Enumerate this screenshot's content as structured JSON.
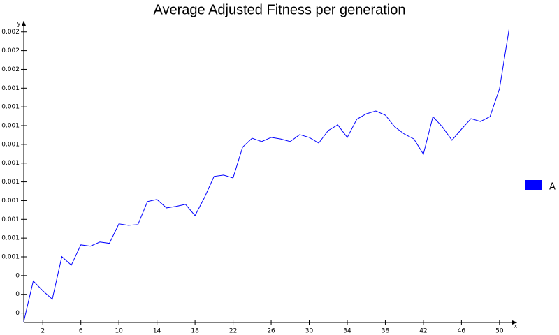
{
  "chart_data": {
    "type": "line",
    "title": "Average Adjusted Fitness per generation",
    "x_label": "x",
    "y_label": "y",
    "x": [
      0,
      1,
      2,
      3,
      4,
      5,
      6,
      7,
      8,
      9,
      10,
      11,
      12,
      13,
      14,
      15,
      16,
      17,
      18,
      19,
      20,
      21,
      22,
      23,
      24,
      25,
      26,
      27,
      28,
      29,
      30,
      31,
      32,
      33,
      34,
      35,
      36,
      37,
      38,
      39,
      40,
      41,
      42,
      43,
      44,
      45,
      46,
      47,
      48,
      49,
      50,
      51
    ],
    "series": [
      {
        "name": "A",
        "color": "#0000ff",
        "values": [
          0.000155,
          0.000371,
          0.000319,
          0.000274,
          0.000501,
          0.000456,
          0.000564,
          0.000557,
          0.000579,
          0.000572,
          0.000676,
          0.000668,
          0.000672,
          0.000795,
          0.000806,
          0.000761,
          0.000769,
          0.00078,
          0.00072,
          0.000817,
          0.000929,
          0.000936,
          0.000921,
          0.001085,
          0.001133,
          0.001115,
          0.001137,
          0.001129,
          0.001115,
          0.001152,
          0.001137,
          0.001107,
          0.001174,
          0.001204,
          0.001137,
          0.001234,
          0.001263,
          0.001278,
          0.001256,
          0.001193,
          0.001155,
          0.001129,
          0.001048,
          0.001248,
          0.001193,
          0.001122,
          0.001181,
          0.001237,
          0.001222,
          0.001248,
          0.001397,
          0.001713
        ]
      }
    ],
    "xlim": [
      0,
      51.7
    ],
    "ylim": [
      0.00015,
      0.00174
    ],
    "xticks": [
      2,
      6,
      10,
      14,
      18,
      22,
      26,
      30,
      34,
      38,
      42,
      46,
      50
    ],
    "yticks": [
      {
        "value": 0.0002,
        "label": "0"
      },
      {
        "value": 0.0003,
        "label": "0"
      },
      {
        "value": 0.0004,
        "label": "0"
      },
      {
        "value": 0.0005,
        "label": "0.001"
      },
      {
        "value": 0.0006,
        "label": "0.001"
      },
      {
        "value": 0.0007,
        "label": "0.001"
      },
      {
        "value": 0.0008,
        "label": "0.001"
      },
      {
        "value": 0.0009,
        "label": "0.001"
      },
      {
        "value": 0.001,
        "label": "0.001"
      },
      {
        "value": 0.0011,
        "label": "0.001"
      },
      {
        "value": 0.0012,
        "label": "0.001"
      },
      {
        "value": 0.0013,
        "label": "0.001"
      },
      {
        "value": 0.0014,
        "label": "0.001"
      },
      {
        "value": 0.0015,
        "label": "0.002"
      },
      {
        "value": 0.0016,
        "label": "0.002"
      },
      {
        "value": 0.0017,
        "label": "0.002"
      }
    ],
    "legend": "right"
  }
}
